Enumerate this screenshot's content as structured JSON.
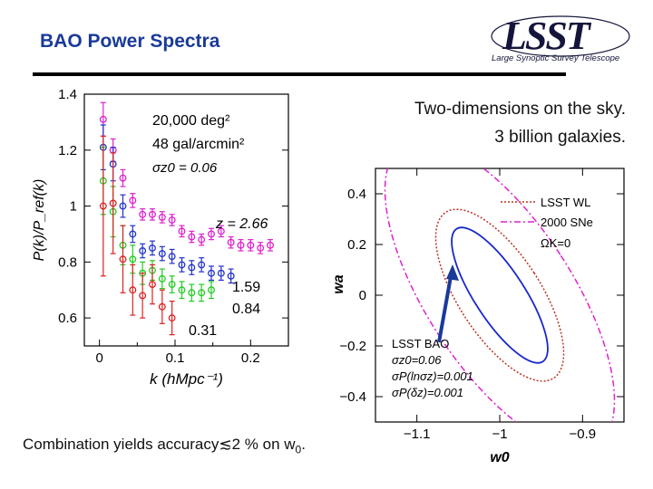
{
  "slide": {
    "title": "BAO Power Spectra",
    "caption_line1": "Two-dimensions on the sky.",
    "caption_line2": "3 billion galaxies.",
    "bottom_prefix": "Combination yields accuracy≲2 % on w",
    "bottom_sub": "0",
    "bottom_suffix": "."
  },
  "logo": {
    "name": "LSST",
    "tagline": "Large Synoptic Survey Telescope"
  },
  "colors": {
    "title": "#1a3a99",
    "magenta": "#dd22cc",
    "blue": "#2233cc",
    "green": "#22cc22",
    "red": "#dd2222",
    "arrow": "#1a3a99"
  },
  "chart_data": [
    {
      "type": "scatter",
      "xlabel": "k  (hMpc⁻¹)",
      "ylabel": "P(k)/P_ref(k)",
      "xlim": [
        -0.02,
        0.25
      ],
      "ylim": [
        0.5,
        1.4
      ],
      "xticks": [
        "0",
        "0.1",
        "0.2"
      ],
      "yticks": [
        "0.6",
        "0.8",
        "1",
        "1.2",
        "1.4"
      ],
      "grid": false,
      "annotations": [
        "20,000 deg²",
        "48 gal/arcmin²",
        "σz0 = 0.06",
        "z = 2.66",
        "1.59",
        "0.84",
        "0.31"
      ],
      "series": [
        {
          "name": "z = 2.66",
          "color": "magenta",
          "x": [
            0.005,
            0.018,
            0.031,
            0.044,
            0.057,
            0.07,
            0.083,
            0.096,
            0.109,
            0.122,
            0.135,
            0.148,
            0.161,
            0.174,
            0.187,
            0.2,
            0.213,
            0.226
          ],
          "y": [
            1.31,
            1.2,
            1.1,
            1.02,
            0.97,
            0.97,
            0.96,
            0.95,
            0.91,
            0.89,
            0.88,
            0.9,
            0.91,
            0.87,
            0.86,
            0.86,
            0.85,
            0.86
          ],
          "err": [
            0.06,
            0.04,
            0.03,
            0.025,
            0.02,
            0.02,
            0.02,
            0.02,
            0.02,
            0.02,
            0.02,
            0.02,
            0.02,
            0.02,
            0.02,
            0.02,
            0.02,
            0.02
          ]
        },
        {
          "name": "1.59",
          "color": "blue",
          "x": [
            0.005,
            0.018,
            0.031,
            0.044,
            0.057,
            0.07,
            0.083,
            0.096,
            0.109,
            0.122,
            0.135,
            0.148,
            0.161,
            0.174
          ],
          "y": [
            1.21,
            1.15,
            1.0,
            0.9,
            0.84,
            0.85,
            0.83,
            0.82,
            0.79,
            0.78,
            0.79,
            0.76,
            0.76,
            0.75
          ],
          "err": [
            0.08,
            0.06,
            0.04,
            0.03,
            0.025,
            0.025,
            0.025,
            0.025,
            0.025,
            0.025,
            0.025,
            0.025,
            0.025,
            0.025
          ]
        },
        {
          "name": "0.84",
          "color": "green",
          "x": [
            0.005,
            0.018,
            0.031,
            0.044,
            0.057,
            0.07,
            0.083,
            0.096,
            0.109,
            0.122,
            0.135,
            0.148
          ],
          "y": [
            1.09,
            0.98,
            0.86,
            0.81,
            0.76,
            0.77,
            0.74,
            0.72,
            0.7,
            0.69,
            0.69,
            0.7
          ],
          "err": [
            0.12,
            0.09,
            0.07,
            0.05,
            0.04,
            0.035,
            0.035,
            0.03,
            0.03,
            0.03,
            0.03,
            0.03
          ]
        },
        {
          "name": "0.31",
          "color": "red",
          "x": [
            0.005,
            0.018,
            0.031,
            0.044,
            0.057,
            0.07,
            0.083,
            0.096
          ],
          "y": [
            1.0,
            1.01,
            0.81,
            0.7,
            0.68,
            0.72,
            0.64,
            0.6
          ],
          "err": [
            0.25,
            0.18,
            0.12,
            0.09,
            0.08,
            0.07,
            0.06,
            0.06
          ]
        }
      ]
    },
    {
      "type": "line",
      "xlabel": "w0",
      "ylabel": "wa",
      "xlim": [
        -1.15,
        -0.85
      ],
      "ylim": [
        -0.5,
        0.5
      ],
      "xticks": [
        "−1.1",
        "−1",
        "−0.9"
      ],
      "yticks": [
        "−0.4",
        "−0.2",
        "0",
        "0.2",
        "0.4"
      ],
      "legend": {
        "placement": "top-right",
        "entries": [
          "LSST WL",
          "2000 SNe",
          "ΩK=0"
        ]
      },
      "annotations": [
        "LSST BAO",
        "σz0=0.06",
        "σP(lnσz)=0.001",
        "σP(δz)=0.001"
      ],
      "series": [
        {
          "name": "LSST WL",
          "color": "#bb3322",
          "style": "dotted",
          "center": [
            -1.0,
            0.0
          ],
          "angle_deg": -33,
          "semi_axes_data": [
            0.09,
            0.5
          ]
        },
        {
          "name": "2000 SNe",
          "color": "#dd22cc",
          "style": "dash-dot",
          "center": [
            -1.0,
            0.0
          ],
          "angle_deg": -33,
          "semi_axes_data": [
            0.16,
            0.9
          ]
        },
        {
          "name": "LSST BAO",
          "color": "#1a28cc",
          "style": "solid",
          "center": [
            -1.0,
            0.0
          ],
          "angle_deg": -33,
          "semi_axes_data": [
            0.055,
            0.4
          ]
        }
      ]
    }
  ]
}
